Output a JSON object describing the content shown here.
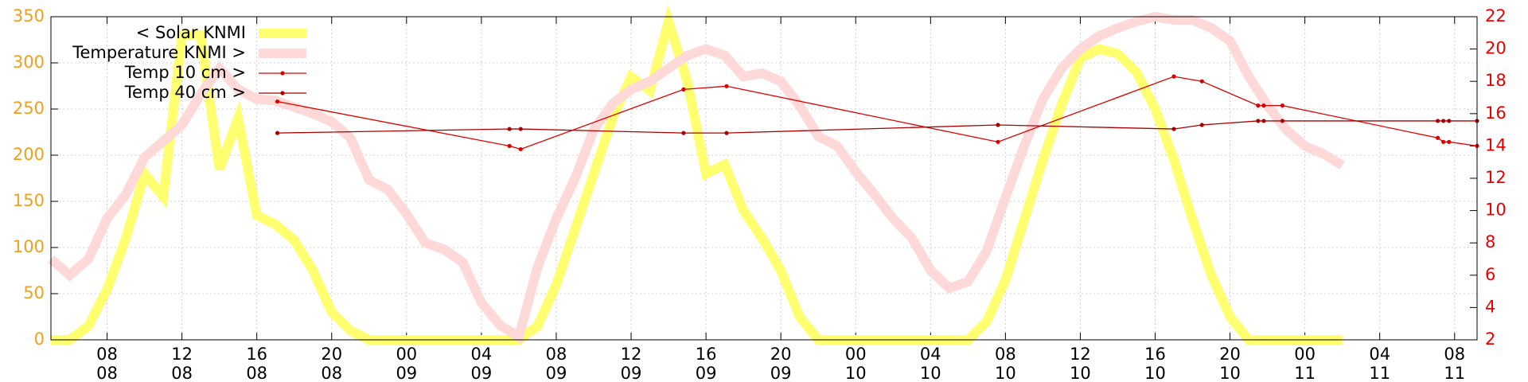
{
  "chart_data": {
    "type": "line",
    "xlim": [
      5,
      81.2
    ],
    "xticks": [
      {
        "value": 8,
        "label": "08\n08"
      },
      {
        "value": 12,
        "label": "12\n08"
      },
      {
        "value": 16,
        "label": "16\n08"
      },
      {
        "value": 20,
        "label": "20\n08"
      },
      {
        "value": 24,
        "label": "00\n09"
      },
      {
        "value": 28,
        "label": "04\n09"
      },
      {
        "value": 32,
        "label": "08\n09"
      },
      {
        "value": 36,
        "label": "12\n09"
      },
      {
        "value": 40,
        "label": "16\n09"
      },
      {
        "value": 44,
        "label": "20\n09"
      },
      {
        "value": 48,
        "label": "00\n10"
      },
      {
        "value": 52,
        "label": "04\n10"
      },
      {
        "value": 56,
        "label": "08\n10"
      },
      {
        "value": 60,
        "label": "12\n10"
      },
      {
        "value": 64,
        "label": "16\n10"
      },
      {
        "value": 68,
        "label": "20\n10"
      },
      {
        "value": 72,
        "label": "00\n11"
      },
      {
        "value": 76,
        "label": "04\n11"
      },
      {
        "value": 80,
        "label": "08\n11"
      }
    ],
    "ylim": [
      0,
      350
    ],
    "yticks": [
      0,
      50,
      100,
      150,
      200,
      250,
      300,
      350
    ],
    "y2lim": [
      2,
      22
    ],
    "y2ticks": [
      2,
      4,
      6,
      8,
      10,
      12,
      14,
      16,
      18,
      20,
      22
    ],
    "ytick_color": "#f0a020",
    "y2tick_color": "#ee0000",
    "grid": true,
    "legend": "upper-left",
    "series": [
      {
        "name": "< Solar KNMI",
        "color": "#ffff70",
        "axis": "y",
        "style": "thick",
        "x": [
          5,
          6,
          7,
          8,
          9,
          10,
          11,
          12,
          13,
          14,
          15,
          16,
          17,
          18,
          19,
          20,
          21,
          22,
          23,
          24,
          25,
          26,
          27,
          28,
          29,
          30,
          31,
          32,
          33,
          34,
          35,
          36,
          37,
          38,
          39,
          40,
          41,
          42,
          43,
          44,
          45,
          46,
          47,
          48,
          49,
          50,
          51,
          52,
          53,
          54,
          55,
          56,
          57,
          58,
          59,
          60,
          61,
          62,
          63,
          64,
          65,
          66,
          67,
          68,
          69,
          70,
          71,
          72,
          73,
          74
        ],
        "values": [
          0,
          0,
          15,
          55,
          110,
          180,
          155,
          330,
          330,
          185,
          240,
          135,
          125,
          108,
          75,
          30,
          10,
          0,
          0,
          0,
          0,
          0,
          0,
          0,
          0,
          0,
          15,
          60,
          120,
          180,
          240,
          285,
          270,
          345,
          280,
          180,
          190,
          140,
          110,
          75,
          25,
          0,
          0,
          0,
          0,
          0,
          0,
          0,
          0,
          0,
          20,
          65,
          130,
          195,
          255,
          305,
          315,
          310,
          290,
          250,
          195,
          130,
          70,
          25,
          0,
          0,
          0,
          0,
          0,
          0
        ]
      },
      {
        "name": "Temperature KNMI >",
        "color": "#ffd8d8",
        "axis": "y2",
        "style": "thick",
        "x": [
          5,
          6,
          7,
          8,
          9,
          10,
          11,
          12,
          13,
          14,
          15,
          16,
          17,
          18,
          19,
          20,
          21,
          22,
          23,
          24,
          25,
          26,
          27,
          28,
          29,
          30,
          31,
          32,
          33,
          34,
          35,
          36,
          37,
          38,
          39,
          40,
          41,
          42,
          43,
          44,
          45,
          46,
          47,
          48,
          49,
          50,
          51,
          52,
          53,
          54,
          55,
          56,
          57,
          58,
          59,
          60,
          61,
          62,
          63,
          64,
          65,
          66,
          67,
          68,
          69,
          70,
          71,
          72,
          73,
          74
        ],
        "values": [
          7,
          6,
          7,
          9.5,
          11,
          13.3,
          14.3,
          15.3,
          17.2,
          18.8,
          17.5,
          16.9,
          16.8,
          16.4,
          16,
          15.5,
          14.5,
          11.9,
          11.3,
          9.8,
          8,
          7.6,
          6.8,
          4.3,
          2.9,
          2.2,
          6.5,
          9.5,
          12,
          15,
          16.6,
          17.5,
          18,
          18.8,
          19.6,
          20,
          19.6,
          18.3,
          18.5,
          18,
          16.5,
          14.6,
          14,
          12.4,
          11,
          9.5,
          8.3,
          6.3,
          5.2,
          5.6,
          7.5,
          10.8,
          14,
          16.9,
          18.8,
          20,
          20.8,
          21.3,
          21.7,
          22,
          21.8,
          21.8,
          21.3,
          20.5,
          18.3,
          16.5,
          15,
          14,
          13.5,
          12.8
        ]
      },
      {
        "name": "Temp 10 cm >",
        "color": "#dd0000",
        "axis": "y2",
        "style": "points",
        "x": [
          17.1,
          29.5,
          30.1,
          38.8,
          41.1,
          55.6,
          65,
          66.5,
          69.5,
          69.8,
          70.8,
          79.1,
          79.4,
          79.7,
          81.2
        ],
        "values": [
          16.75,
          14,
          13.8,
          17.5,
          17.7,
          14.25,
          18.3,
          18,
          16.5,
          16.5,
          16.5,
          14.5,
          14.25,
          14.25,
          14
        ]
      },
      {
        "name": "Temp 40 cm >",
        "color": "#aa0000",
        "axis": "y2",
        "style": "points",
        "x": [
          17.1,
          29.5,
          30.1,
          38.8,
          41.1,
          55.6,
          65,
          66.5,
          69.5,
          69.8,
          70.8,
          79.1,
          79.4,
          79.7,
          81.2
        ],
        "values": [
          14.8,
          15.05,
          15.05,
          14.8,
          14.8,
          15.3,
          15.05,
          15.3,
          15.55,
          15.55,
          15.55,
          15.55,
          15.55,
          15.55,
          15.55
        ]
      }
    ]
  }
}
